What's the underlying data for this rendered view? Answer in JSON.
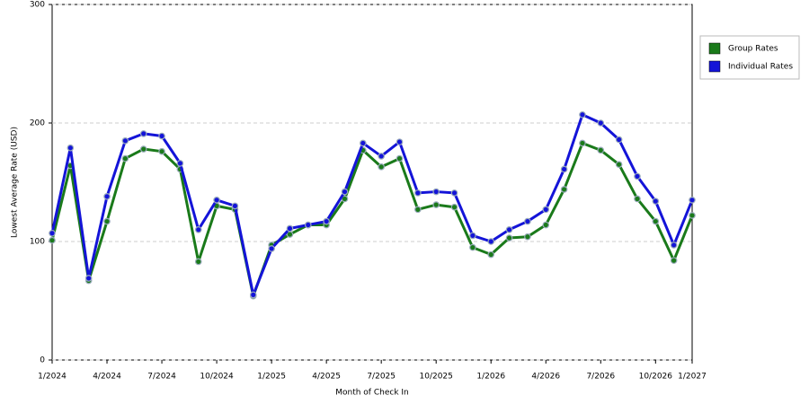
{
  "chart_data": {
    "type": "line",
    "y_label": "Lowest Average Rate (USD)",
    "x_label": "Month of Check In",
    "categories": [
      "1/2024",
      null,
      null,
      "4/2024",
      null,
      null,
      "7/2024",
      null,
      null,
      "10/2024",
      null,
      null,
      "1/2025",
      null,
      null,
      "4/2025",
      null,
      null,
      "7/2025",
      null,
      null,
      "10/2025",
      null,
      null,
      "1/2026",
      null,
      null,
      "4/2026",
      null,
      null,
      "7/2026",
      null,
      null,
      "10/2026",
      null,
      "1/2027"
    ],
    "ylim": [
      0,
      300
    ],
    "yticks": [
      0,
      100,
      200,
      300
    ],
    "grid": true,
    "legend": "right",
    "series": [
      {
        "name": "Group Rates",
        "color": "#1a7a1a",
        "values": [
          101,
          164,
          67,
          117,
          170,
          178,
          176,
          161,
          83,
          130,
          127,
          54,
          97,
          106,
          114,
          114,
          136,
          177,
          163,
          170,
          127,
          131,
          129,
          95,
          89,
          103,
          104,
          114,
          144,
          183,
          177,
          165,
          136,
          117,
          84,
          122
        ]
      },
      {
        "name": "Individual Rates",
        "color": "#1414d8",
        "values": [
          107,
          179,
          69,
          138,
          185,
          191,
          189,
          166,
          110,
          135,
          130,
          55,
          94,
          111,
          114,
          117,
          142,
          183,
          172,
          184,
          141,
          142,
          141,
          105,
          100,
          110,
          117,
          127,
          161,
          207,
          200,
          186,
          155,
          134,
          97,
          135
        ]
      }
    ]
  }
}
